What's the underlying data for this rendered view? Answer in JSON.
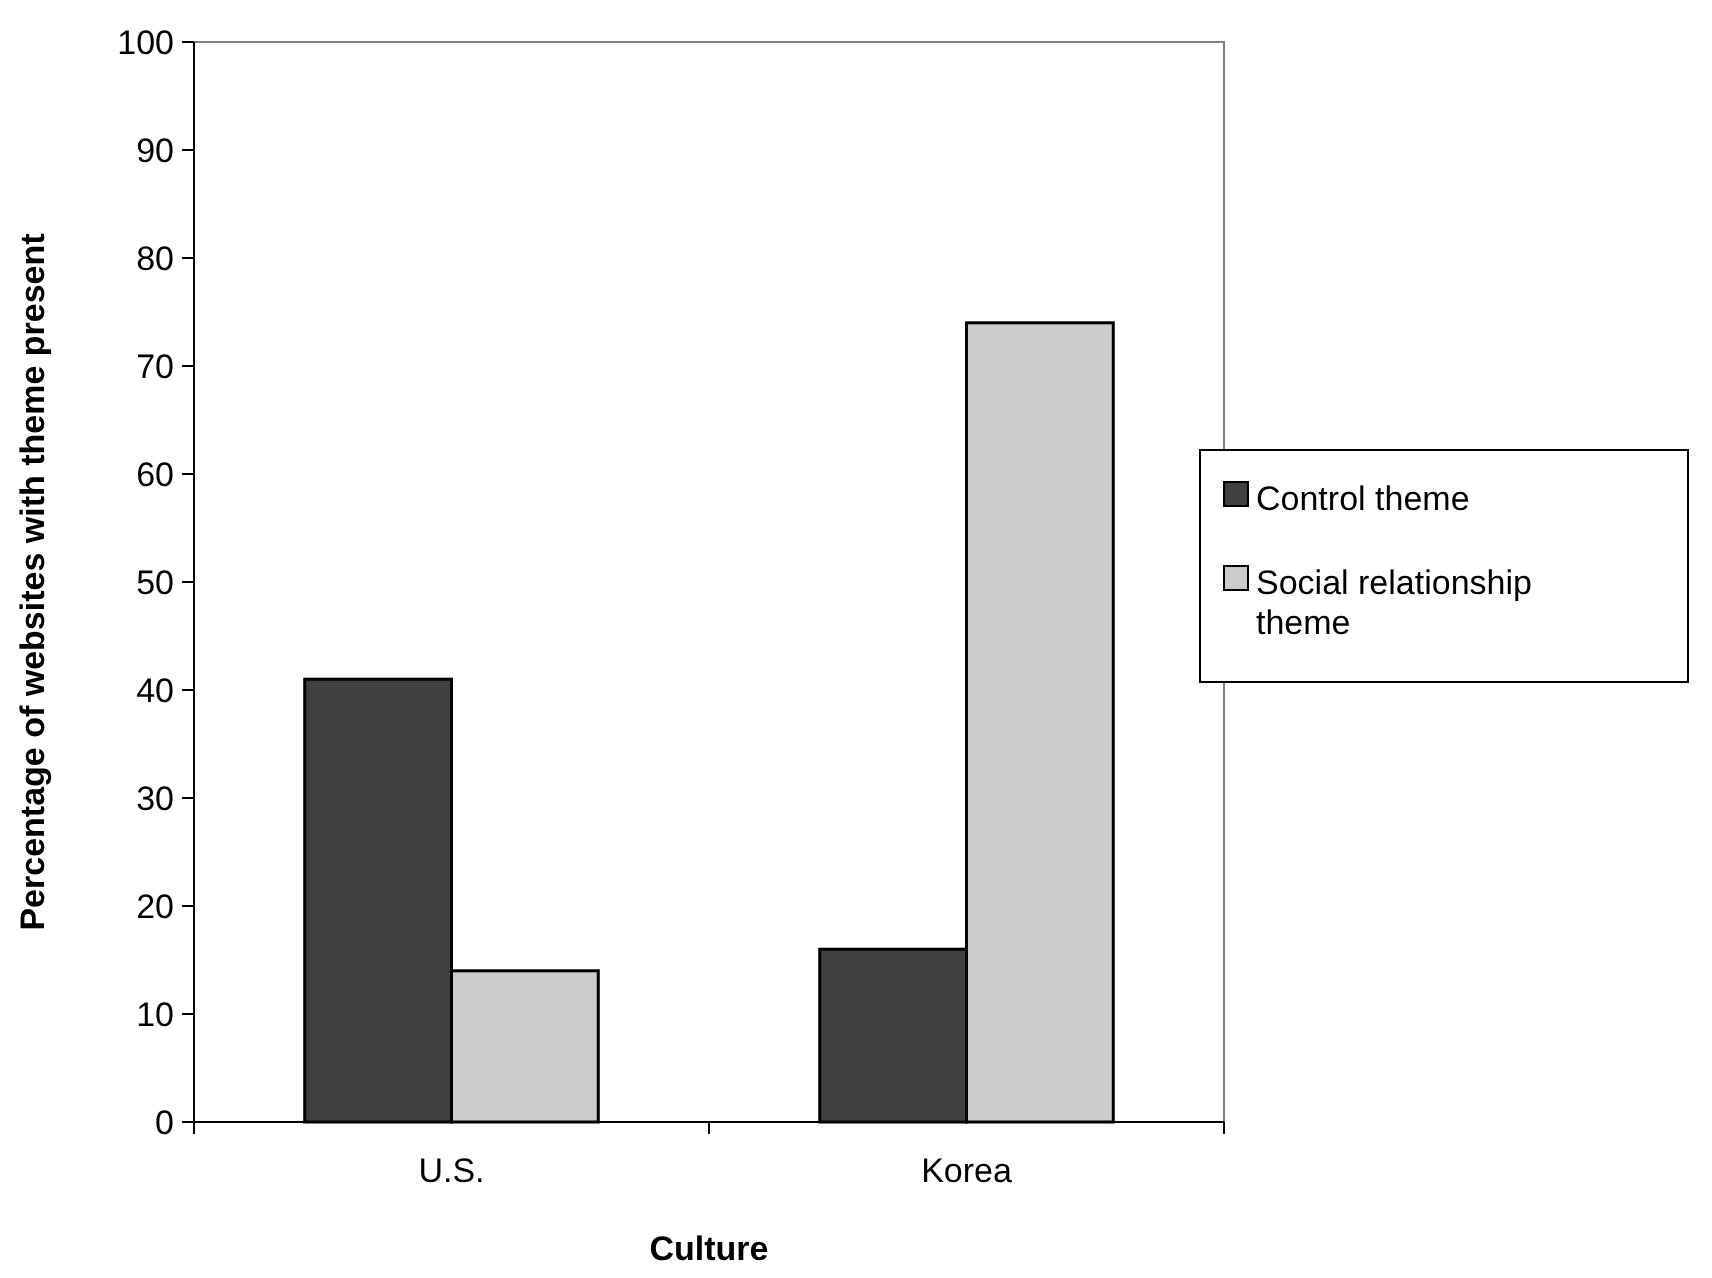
{
  "chart_data": {
    "type": "bar",
    "xlabel": "Culture",
    "ylabel": "Percentage of websites with theme present",
    "categories": [
      "U.S.",
      "Korea"
    ],
    "series": [
      {
        "name": "Control theme",
        "color": "#404040",
        "values": [
          41,
          16
        ]
      },
      {
        "name": "Social relationship theme",
        "color": "#cccccc",
        "values": [
          14,
          74
        ]
      }
    ],
    "ylim": [
      0,
      100
    ],
    "yticks": [
      0,
      10,
      20,
      30,
      40,
      50,
      60,
      70,
      80,
      90,
      100
    ],
    "grid": false,
    "legend": "right"
  }
}
